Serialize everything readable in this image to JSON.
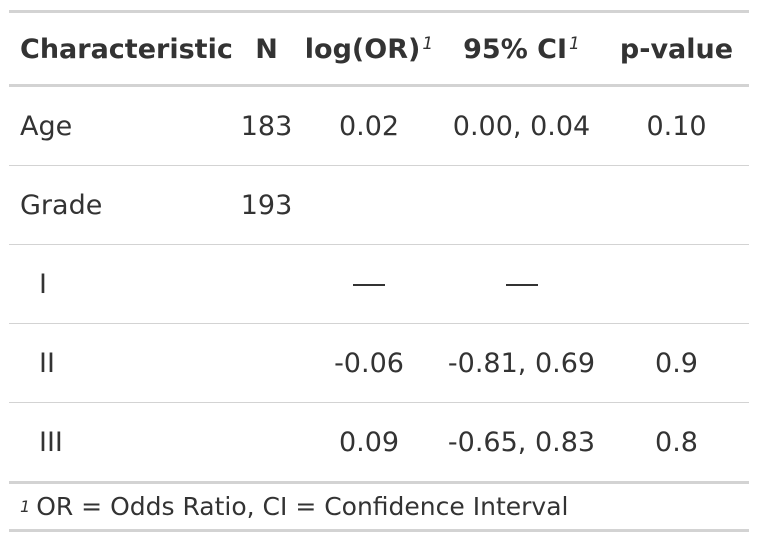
{
  "table": {
    "headers": {
      "characteristic": "Characteristic",
      "n": "N",
      "log_or": "log(OR)",
      "log_or_footnote_mark": "1",
      "ci": "95% CI",
      "ci_footnote_mark": "1",
      "p_value": "p-value"
    },
    "rows": [
      {
        "characteristic": "Age",
        "n": "183",
        "log_or": "0.02",
        "ci": "0.00, 0.04",
        "p_value": "0.10"
      },
      {
        "characteristic": "Grade",
        "n": "193",
        "log_or": "",
        "ci": "",
        "p_value": ""
      },
      {
        "characteristic": "I",
        "n": "",
        "log_or": "—",
        "ci": "—",
        "p_value": ""
      },
      {
        "characteristic": "II",
        "n": "",
        "log_or": "-0.06",
        "ci": "-0.81, 0.69",
        "p_value": "0.9"
      },
      {
        "characteristic": "III",
        "n": "",
        "log_or": "0.09",
        "ci": "-0.65, 0.83",
        "p_value": "0.8"
      }
    ],
    "footnote": {
      "mark": "1",
      "text": "OR = Odds Ratio, CI = Confidence Interval"
    }
  }
}
